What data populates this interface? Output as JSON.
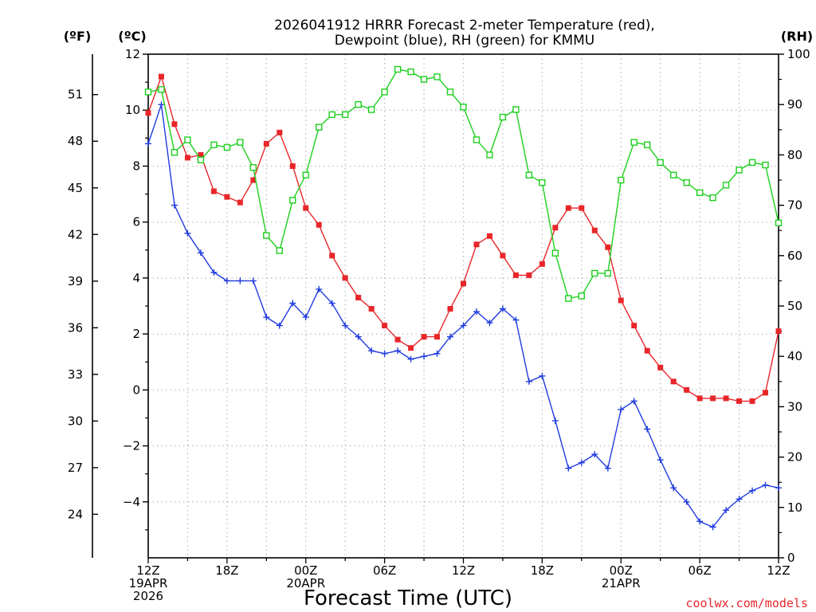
{
  "chart_data": {
    "type": "line",
    "title_line1": "2026041912 HRRR Forecast 2-meter Temperature (red),",
    "title_line2": "Dewpoint (blue), RH (green) for KMMU",
    "xlabel": "Forecast Time (UTC)",
    "unit_f": "(ºF)",
    "unit_c": "(ºC)",
    "unit_rh": "(RH)",
    "credit": "coolwx.com/models",
    "xlim": [
      0,
      48
    ],
    "ylim_c": [
      -6,
      12
    ],
    "ylim_rh": [
      0,
      100
    ],
    "x_ticks": [
      {
        "x": 0,
        "lines": [
          "12Z",
          "19APR",
          "2026"
        ]
      },
      {
        "x": 6,
        "lines": [
          "18Z"
        ]
      },
      {
        "x": 12,
        "lines": [
          "00Z",
          "20APR"
        ]
      },
      {
        "x": 18,
        "lines": [
          "06Z"
        ]
      },
      {
        "x": 24,
        "lines": [
          "12Z"
        ]
      },
      {
        "x": 30,
        "lines": [
          "18Z"
        ]
      },
      {
        "x": 36,
        "lines": [
          "00Z",
          "21APR"
        ]
      },
      {
        "x": 42,
        "lines": [
          "06Z"
        ]
      },
      {
        "x": 48,
        "lines": [
          "12Z"
        ]
      }
    ],
    "c_ticks": [
      12,
      10,
      8,
      6,
      4,
      2,
      0,
      -2,
      -4
    ],
    "c_tick_labels": [
      "12",
      "10",
      "8",
      "6",
      "4",
      "2",
      "0",
      "−2",
      "−4"
    ],
    "f_ticks": [
      51,
      48,
      45,
      42,
      39,
      36,
      33,
      30,
      27,
      24
    ],
    "rh_ticks": [
      100,
      90,
      80,
      70,
      60,
      50,
      40,
      30,
      20,
      10,
      0
    ],
    "series": [
      {
        "name": "Temperature",
        "color": "#e8262a",
        "marker": "filled-square",
        "axis": "c",
        "values": [
          9.9,
          11.2,
          9.5,
          8.3,
          8.4,
          7.1,
          6.9,
          6.7,
          7.5,
          8.8,
          9.2,
          8.0,
          6.5,
          5.9,
          4.8,
          4.0,
          3.3,
          2.9,
          2.3,
          1.8,
          1.5,
          1.9,
          1.9,
          2.9,
          3.8,
          5.2,
          5.5,
          4.8,
          4.1,
          4.1,
          4.5,
          5.8,
          6.5,
          6.5,
          5.7,
          5.1,
          3.2,
          2.3,
          1.4,
          0.8,
          0.3,
          0.0,
          -0.3,
          -0.3,
          -0.3,
          -0.4,
          -0.4,
          -0.1,
          2.1
        ]
      },
      {
        "name": "Dewpoint",
        "color": "#1f3be0",
        "marker": "plus",
        "axis": "c",
        "values": [
          8.8,
          10.2,
          6.6,
          5.6,
          4.9,
          4.2,
          3.9,
          3.9,
          3.9,
          2.6,
          2.3,
          3.1,
          2.6,
          3.6,
          3.1,
          2.3,
          1.9,
          1.4,
          1.3,
          1.4,
          1.1,
          1.2,
          1.3,
          1.9,
          2.3,
          2.8,
          2.4,
          2.9,
          2.5,
          0.3,
          0.5,
          -1.1,
          -2.8,
          -2.6,
          -2.3,
          -2.8,
          -0.7,
          -0.4,
          -1.4,
          -2.5,
          -3.5,
          -4.0,
          -4.7,
          -4.9,
          -4.3,
          -3.9,
          -3.6,
          -3.4,
          -3.5
        ]
      },
      {
        "name": "RH",
        "color": "#1ecf1e",
        "marker": "open-square",
        "axis": "rh",
        "values": [
          92.5,
          93.0,
          80.5,
          83.0,
          79.0,
          82.0,
          81.5,
          82.5,
          77.5,
          64.0,
          61.0,
          71.0,
          76.0,
          85.5,
          88.0,
          88.0,
          90.0,
          89.0,
          92.5,
          97.0,
          96.5,
          95.0,
          95.5,
          92.5,
          89.5,
          83.0,
          80.0,
          87.5,
          89.0,
          76.0,
          74.5,
          60.5,
          51.5,
          52.0,
          56.5,
          56.5,
          75.0,
          82.5,
          82.0,
          78.5,
          76.0,
          74.5,
          72.5,
          71.5,
          74.0,
          77.0,
          78.5,
          78.0,
          66.5
        ]
      }
    ]
  }
}
